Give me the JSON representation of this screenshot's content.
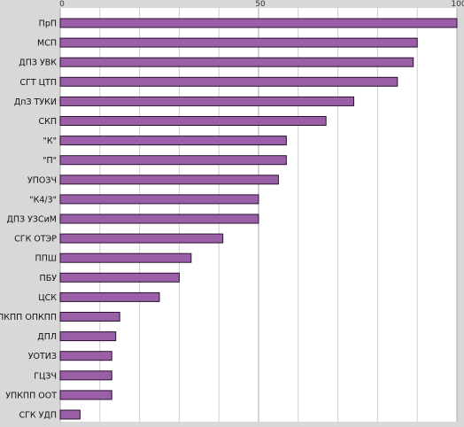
{
  "chart_data": {
    "type": "bar",
    "orientation": "horizontal",
    "categories": [
      "ПрП",
      "МСП",
      "ДПЗ УВК",
      "СГТ ЦТП",
      "ДпЗ ТУКИ",
      "СКП",
      "\"К\"",
      "\"П\"",
      "УПОЗЧ",
      "\"К4/3\"",
      "ДПЗ УЗСиМ",
      "СГК ОТЭР",
      "ППШ",
      "ПБУ",
      "ЦСК",
      "УПКПП ОПКПП",
      "ДПЛ",
      "УОТИЗ",
      "ГЦЗЧ",
      "УПКПП ООТ",
      "СГК УДП"
    ],
    "values": [
      100,
      90,
      89,
      85,
      74,
      67,
      57,
      57,
      55,
      50,
      50,
      41,
      33,
      30,
      25,
      15,
      14,
      13,
      13,
      13,
      5
    ],
    "xlim": [
      0,
      100
    ],
    "xticks": [
      "0",
      "50",
      "100"
    ],
    "grid": true,
    "colors": {
      "bar_fill": "#9b5fa8",
      "bar_stroke": "#2a1330",
      "plot_bg": "#ffffff",
      "grid": "#cfcfcf",
      "frame": "#d8d8d8"
    }
  }
}
